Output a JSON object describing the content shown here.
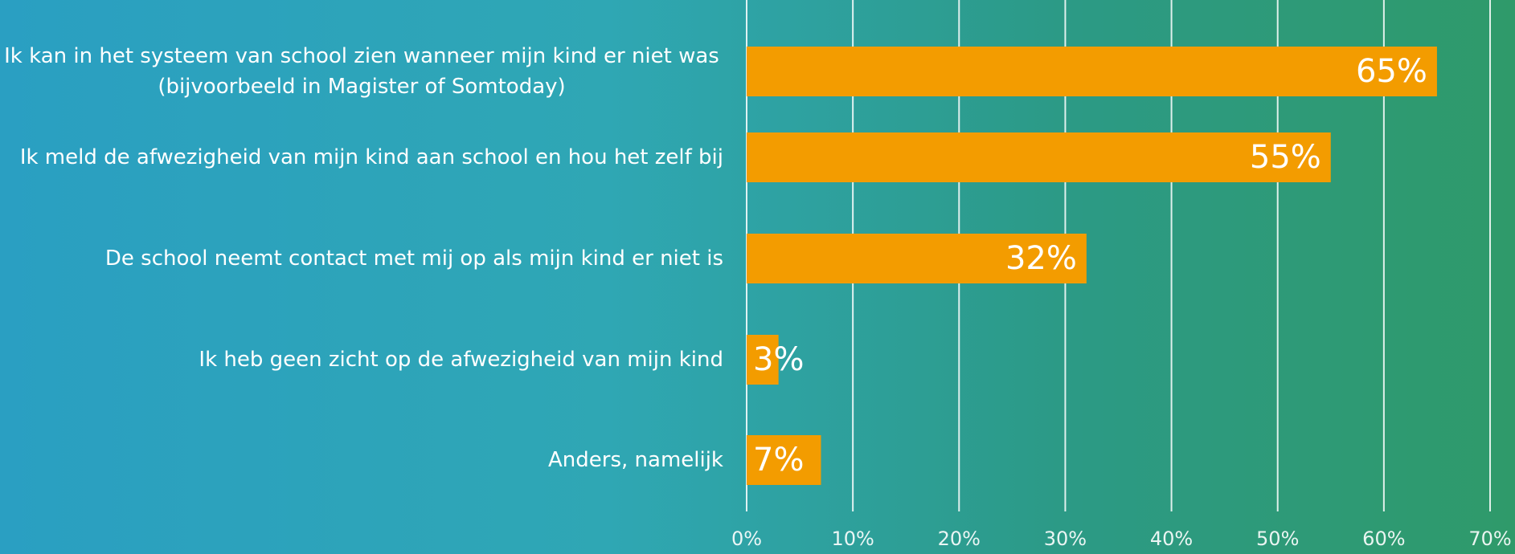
{
  "chart_data": {
    "type": "bar",
    "orientation": "horizontal",
    "categories": [
      "Ik kan in het systeem van school zien wanneer mijn kind er niet was (bijvoorbeeld in Magister of Somtoday)",
      "Ik meld de afwezigheid van mijn kind aan school en hou het zelf bij",
      "De school neemt contact met mij op als mijn kind er niet is",
      "Ik heb geen zicht op de afwezigheid van mijn kind",
      "Anders, namelijk"
    ],
    "values": [
      65,
      55,
      32,
      3,
      7
    ],
    "value_labels": [
      "65%",
      "55%",
      "32%",
      "3%",
      "7%"
    ],
    "color": "#f39c00",
    "xlim": [
      0,
      70
    ],
    "xticks": [
      {
        "value": 0,
        "label": "0%"
      },
      {
        "value": 10,
        "label": "10%"
      },
      {
        "value": 20,
        "label": "20%"
      },
      {
        "value": 30,
        "label": "30%"
      },
      {
        "value": 40,
        "label": "40%"
      },
      {
        "value": 50,
        "label": "50%"
      },
      {
        "value": 60,
        "label": "60%"
      },
      {
        "value": 70,
        "label": "70%"
      }
    ],
    "grid": true
  }
}
